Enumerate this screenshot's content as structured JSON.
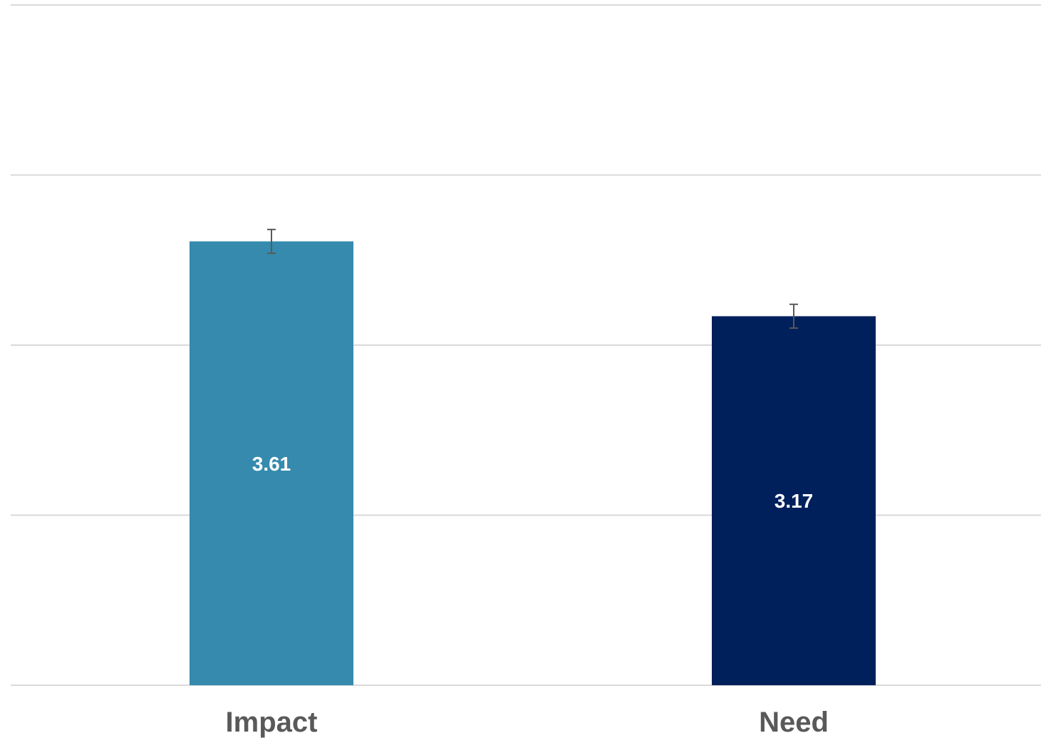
{
  "chart_data": {
    "type": "bar",
    "categories": [
      "Impact",
      "Need"
    ],
    "values": [
      3.61,
      3.17
    ],
    "value_labels": [
      "3.61",
      "3.17"
    ],
    "error": [
      0.07,
      0.07
    ],
    "ylim": [
      1,
      5
    ],
    "yticks": [
      1,
      2,
      3,
      4,
      5
    ],
    "grid": true,
    "bar_colors": [
      "#358aad",
      "#00205b"
    ],
    "title": "",
    "xlabel": "",
    "ylabel": ""
  }
}
